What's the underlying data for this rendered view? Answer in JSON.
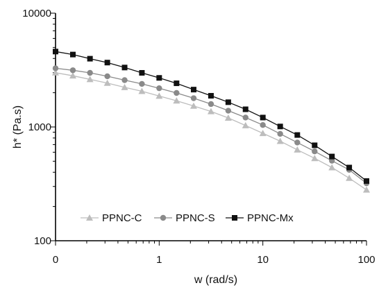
{
  "chart_data": {
    "type": "line",
    "xlabel": "w (rad/s)",
    "ylabel": "h* (Pa.s)",
    "x_scale": "log",
    "y_scale": "log",
    "xlim": [
      0.1,
      100
    ],
    "ylim": [
      100,
      10000
    ],
    "x_tick_labels": [
      "0",
      "1",
      "10",
      "100"
    ],
    "y_tick_labels": [
      "100",
      "1000",
      "10000"
    ],
    "grid": false,
    "legend_position": "bottom-center",
    "x": [
      0.1,
      0.147,
      0.215,
      0.316,
      0.464,
      0.681,
      1,
      1.47,
      2.15,
      3.16,
      4.64,
      6.81,
      10,
      14.7,
      21.5,
      31.6,
      46.4,
      68.1,
      100
    ],
    "series": [
      {
        "name": "PPNC-C",
        "color": "#bdbdbd",
        "marker": "triangle",
        "values": [
          3000,
          2820,
          2620,
          2430,
          2230,
          2060,
          1870,
          1700,
          1530,
          1370,
          1200,
          1030,
          880,
          750,
          630,
          530,
          440,
          355,
          280
        ]
      },
      {
        "name": "PPNC-S",
        "color": "#8a8a8a",
        "marker": "circle",
        "values": [
          3280,
          3150,
          2990,
          2790,
          2580,
          2390,
          2190,
          1990,
          1790,
          1590,
          1390,
          1210,
          1040,
          870,
          730,
          610,
          505,
          420,
          320
        ]
      },
      {
        "name": "PPNC-Mx",
        "color": "#111111",
        "marker": "square",
        "values": [
          4600,
          4330,
          3980,
          3680,
          3330,
          2990,
          2700,
          2420,
          2130,
          1880,
          1650,
          1430,
          1210,
          1010,
          850,
          690,
          550,
          440,
          335
        ]
      }
    ]
  }
}
